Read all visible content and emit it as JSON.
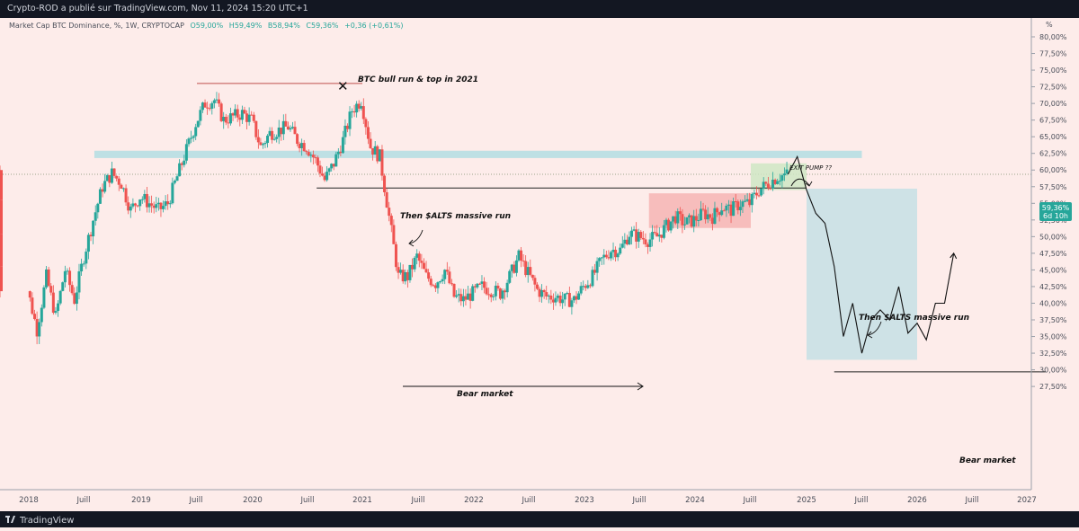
{
  "header": {
    "publisher_line": "Crypto-ROD a publié sur TradingView.com, Nov 11, 2024 15:20 UTC+1",
    "symbol_line": "Market Cap BTC Dominance, %, 1W, CRYPTOCAP",
    "o": "O59,00%",
    "h": "H59,49%",
    "b": "B58,94%",
    "c": "C59,36%",
    "change": "+0,36 (+0,61%)"
  },
  "footer": {
    "brand": "TradingView"
  },
  "price_axis": {
    "unit": "%",
    "labels": [
      "80,00%",
      "77,50%",
      "75,00%",
      "72,50%",
      "70,00%",
      "67,50%",
      "65,00%",
      "62,50%",
      "60,00%",
      "57,50%",
      "55,00%",
      "52,50%",
      "50,00%",
      "47,50%",
      "45,00%",
      "42,50%",
      "40,00%",
      "37,50%",
      "35,00%",
      "32,50%",
      "30,00%",
      "27,50%"
    ]
  },
  "current_price": {
    "value": "59,36%",
    "countdown": "6d 10h"
  },
  "time_axis": {
    "labels": [
      "2018",
      "Juill",
      "2019",
      "Juill",
      "2020",
      "Juill",
      "2021",
      "Juill",
      "2022",
      "Juill",
      "2023",
      "Juill",
      "2024",
      "Juill",
      "2025",
      "Juill",
      "2026",
      "Juill",
      "2027"
    ]
  },
  "annotations": {
    "top_marker": "✕",
    "top_note": "BTC bull run & top in 2021",
    "alts_run_1": "Then $ALTS massive run",
    "bear_1": "Bear market",
    "exit_pump": "EXIT PUMP ??",
    "alts_run_2": "Then $ALTS massive run",
    "bear_2": "Bear market"
  },
  "colors": {
    "up": "#26a69a",
    "down": "#ef5350",
    "zone_teal": "#b7dfe3",
    "zone_red": "#f6b5b4",
    "zone_green": "#cfe8c4",
    "projection_box": "#c9e1e6",
    "price_tag": "#26a69a"
  },
  "chart_data": {
    "type": "candlestick",
    "title": "Market Cap BTC Dominance, %, 1W, CRYPTOCAP",
    "ylabel": "%",
    "ylim": [
      27.5,
      80
    ],
    "x_range": [
      "2018-01",
      "2027-03"
    ],
    "last": {
      "open": 59.0,
      "high": 59.49,
      "low": 58.94,
      "close": 59.36
    },
    "path_points": [
      [
        "2017-12",
        60.0
      ],
      [
        "2018-01",
        42.0
      ],
      [
        "2018-02",
        36.0
      ],
      [
        "2018-03",
        44.0
      ],
      [
        "2018-04",
        38.0
      ],
      [
        "2018-05",
        45.0
      ],
      [
        "2018-06",
        40.5
      ],
      [
        "2018-07",
        47.0
      ],
      [
        "2018-08",
        52.5
      ],
      [
        "2018-09",
        57.5
      ],
      [
        "2018-10",
        59.5
      ],
      [
        "2018-11",
        58.0
      ],
      [
        "2018-12",
        54.0
      ],
      [
        "2019-01",
        56.0
      ],
      [
        "2019-02",
        55.0
      ],
      [
        "2019-03",
        54.0
      ],
      [
        "2019-04",
        55.0
      ],
      [
        "2019-05",
        59.0
      ],
      [
        "2019-06",
        63.0
      ],
      [
        "2019-07",
        67.0
      ],
      [
        "2019-08",
        70.0
      ],
      [
        "2019-09",
        70.5
      ],
      [
        "2019-10",
        67.5
      ],
      [
        "2019-11",
        68.0
      ],
      [
        "2019-12",
        68.5
      ],
      [
        "2020-01",
        67.5
      ],
      [
        "2020-02",
        63.5
      ],
      [
        "2020-03",
        65.5
      ],
      [
        "2020-04",
        66.0
      ],
      [
        "2020-05",
        66.5
      ],
      [
        "2020-06",
        64.5
      ],
      [
        "2020-07",
        63.5
      ],
      [
        "2020-08",
        61.5
      ],
      [
        "2020-09",
        58.5
      ],
      [
        "2020-10",
        61.0
      ],
      [
        "2020-11",
        64.5
      ],
      [
        "2020-12",
        69.0
      ],
      [
        "2021-01",
        70.5
      ],
      [
        "2021-02",
        63.5
      ],
      [
        "2021-03",
        62.0
      ],
      [
        "2021-04",
        53.0
      ],
      [
        "2021-05",
        44.0
      ],
      [
        "2021-06",
        44.0
      ],
      [
        "2021-07",
        47.0
      ],
      [
        "2021-08",
        44.0
      ],
      [
        "2021-09",
        43.0
      ],
      [
        "2021-10",
        45.0
      ],
      [
        "2021-11",
        41.0
      ],
      [
        "2021-12",
        40.5
      ],
      [
        "2022-01",
        41.5
      ],
      [
        "2022-02",
        42.5
      ],
      [
        "2022-03",
        42.0
      ],
      [
        "2022-04",
        41.5
      ],
      [
        "2022-05",
        44.0
      ],
      [
        "2022-06",
        47.0
      ],
      [
        "2022-07",
        44.5
      ],
      [
        "2022-08",
        42.0
      ],
      [
        "2022-09",
        41.0
      ],
      [
        "2022-10",
        41.0
      ],
      [
        "2022-11",
        40.5
      ],
      [
        "2022-12",
        40.5
      ],
      [
        "2023-01",
        42.5
      ],
      [
        "2023-02",
        44.0
      ],
      [
        "2023-03",
        46.5
      ],
      [
        "2023-04",
        48.0
      ],
      [
        "2023-05",
        48.0
      ],
      [
        "2023-06",
        50.5
      ],
      [
        "2023-07",
        50.0
      ],
      [
        "2023-08",
        49.5
      ],
      [
        "2023-09",
        50.0
      ],
      [
        "2023-10",
        51.5
      ],
      [
        "2023-11",
        53.0
      ],
      [
        "2023-12",
        52.0
      ],
      [
        "2024-01",
        52.5
      ],
      [
        "2024-02",
        53.5
      ],
      [
        "2024-03",
        53.0
      ],
      [
        "2024-04",
        54.5
      ],
      [
        "2024-05",
        54.0
      ],
      [
        "2024-06",
        55.0
      ],
      [
        "2024-07",
        55.0
      ],
      [
        "2024-08",
        57.0
      ],
      [
        "2024-09",
        58.0
      ],
      [
        "2024-10",
        59.0
      ],
      [
        "2024-11",
        59.36
      ]
    ],
    "projection_points": [
      [
        "2024-11",
        59.36
      ],
      [
        "2024-12",
        62.0
      ],
      [
        "2025-01",
        57.0
      ],
      [
        "2025-02",
        53.5
      ],
      [
        "2025-03",
        52.0
      ],
      [
        "2025-04",
        45.5
      ],
      [
        "2025-05",
        35.0
      ],
      [
        "2025-06",
        40.0
      ],
      [
        "2025-07",
        32.5
      ],
      [
        "2025-08",
        37.5
      ],
      [
        "2025-09",
        39.0
      ],
      [
        "2025-10",
        37.5
      ],
      [
        "2025-11",
        42.5
      ],
      [
        "2025-12",
        35.5
      ],
      [
        "2026-01",
        37.0
      ],
      [
        "2026-02",
        34.5
      ],
      [
        "2026-03",
        40.0
      ],
      [
        "2026-04",
        40.0
      ],
      [
        "2026-05",
        47.5
      ]
    ],
    "zones": [
      {
        "from": "2018-08",
        "to": "2025-07",
        "low": 61.8,
        "high": 62.9,
        "color": "teal"
      },
      {
        "from": "2023-08",
        "to": "2024-07",
        "low": 51.3,
        "high": 56.5,
        "color": "red"
      },
      {
        "from": "2024-07",
        "to": "2025-01",
        "low": 57.0,
        "high": 61.0,
        "color": "green"
      },
      {
        "from": "2025-01",
        "to": "2026-01",
        "low": 31.5,
        "high": 57.2,
        "color": "projection"
      }
    ],
    "lines": [
      {
        "from": "2019-07",
        "to": "2021-01",
        "value": 73.0
      },
      {
        "from": "2020-08",
        "to": "2025-01",
        "value": 57.3
      },
      {
        "from": "2025-04",
        "to": "2027-03",
        "value": 29.7
      }
    ]
  }
}
